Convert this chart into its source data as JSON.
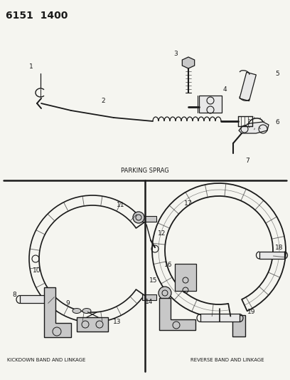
{
  "title_code": "6151  1400",
  "bg_color": "#f5f5f0",
  "line_color": "#1a1a1a",
  "section1_label": "PARKING SPRAG",
  "section2_label": "KICKDOWN BAND AND LINKAGE",
  "section3_label": "REVERSE BAND AND LINKAGE",
  "gray_fill": "#c8c8c8",
  "light_fill": "#e8e8e8"
}
